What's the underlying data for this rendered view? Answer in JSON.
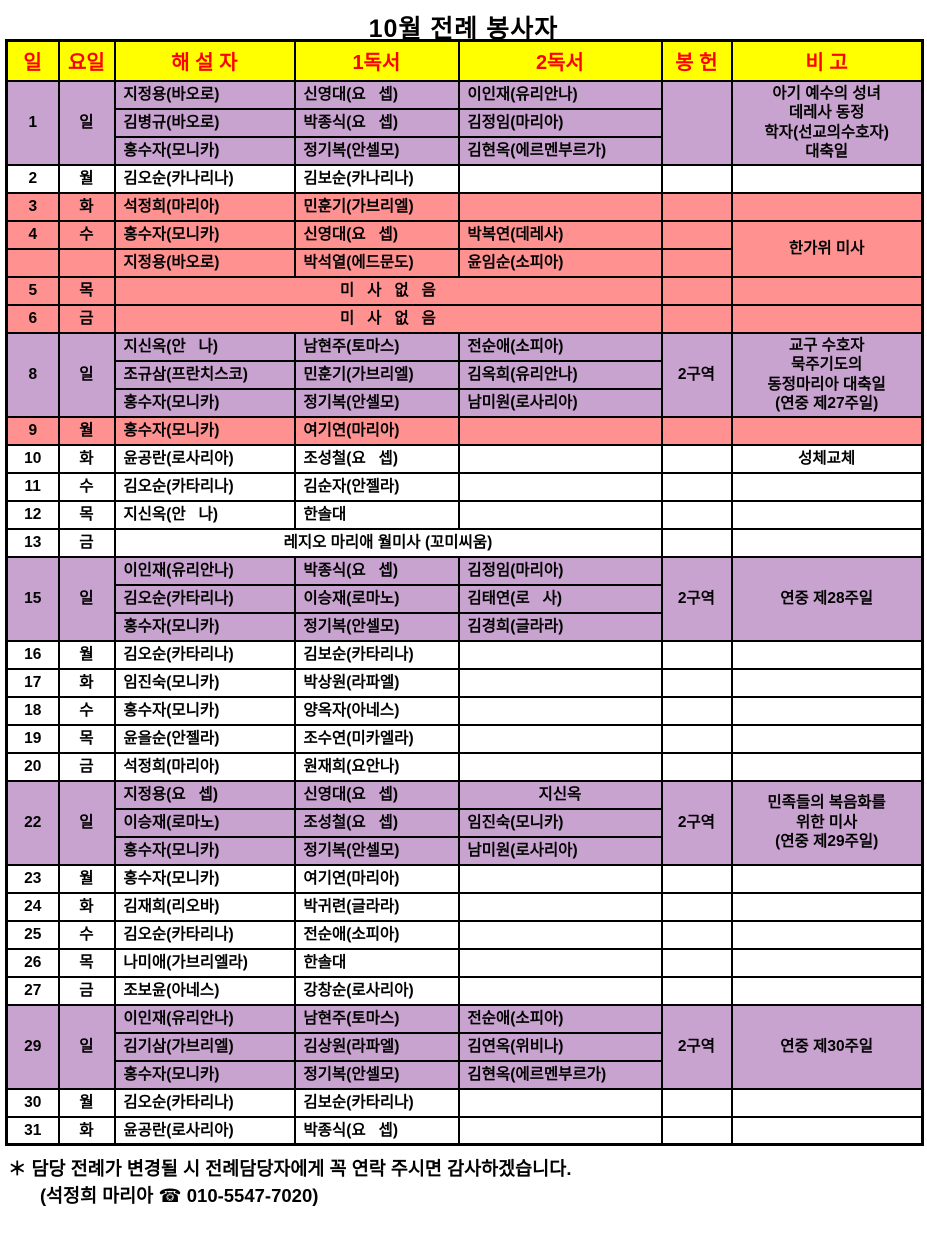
{
  "title": "10월 전례 봉사자",
  "columns": [
    "일",
    "요일",
    "해 설 자",
    "1독서",
    "2독서",
    "봉 헌",
    "비 고"
  ],
  "colors": {
    "header_bg": "#FFFF00",
    "header_text": "#FF0000",
    "sunday_row_bg": "#C9A3CF",
    "holiday_row_bg": "#FF9191",
    "plain_row_bg": "#FFFFFF",
    "grid_line": "#000000"
  },
  "rows": [
    {
      "bg": "purple",
      "cells": [
        {
          "t": "1",
          "rs": 3,
          "c": true
        },
        {
          "t": "일",
          "rs": 3,
          "c": true
        },
        {
          "t": "지정용(바오로)"
        },
        {
          "t": "신영대(요   셉)"
        },
        {
          "t": "이인재(유리안나)"
        },
        {
          "t": "",
          "rs": 3
        },
        {
          "t": "아기 예수의 성녀\n데레사 동정\n학자(선교의수호자)\n대축일",
          "rs": 3,
          "c": true
        }
      ]
    },
    {
      "bg": "purple",
      "cells": [
        {
          "t": "김병규(바오로)"
        },
        {
          "t": "박종식(요   셉)"
        },
        {
          "t": "김정임(마리아)"
        }
      ]
    },
    {
      "bg": "purple",
      "cells": [
        {
          "t": "홍수자(모니카)"
        },
        {
          "t": "정기복(안셀모)"
        },
        {
          "t": "김현옥(에르멘부르가)"
        }
      ]
    },
    {
      "bg": "white",
      "cells": [
        {
          "t": "2",
          "c": true
        },
        {
          "t": "월",
          "c": true
        },
        {
          "t": "김오순(카나리나)"
        },
        {
          "t": "김보순(카나리나)"
        },
        {
          "t": ""
        },
        {
          "t": ""
        },
        {
          "t": ""
        }
      ]
    },
    {
      "bg": "pink",
      "cells": [
        {
          "t": "3",
          "c": true
        },
        {
          "t": "화",
          "c": true
        },
        {
          "t": "석정희(마리아)"
        },
        {
          "t": "민훈기(가브리엘)"
        },
        {
          "t": ""
        },
        {
          "t": ""
        },
        {
          "t": ""
        }
      ]
    },
    {
      "bg": "pink",
      "cells": [
        {
          "t": "4",
          "c": true
        },
        {
          "t": "수",
          "c": true
        },
        {
          "t": "홍수자(모니카)"
        },
        {
          "t": "신영대(요   셉)"
        },
        {
          "t": "박복연(데레사)"
        },
        {
          "t": ""
        },
        {
          "t": "한가위 미사",
          "rs": 2,
          "c": true
        }
      ]
    },
    {
      "bg": "pink",
      "cells": [
        {
          "t": "",
          "c": true
        },
        {
          "t": "",
          "c": true
        },
        {
          "t": "지정용(바오로)"
        },
        {
          "t": "박석열(에드문도)"
        },
        {
          "t": "윤임순(소피아)"
        },
        {
          "t": ""
        }
      ]
    },
    {
      "bg": "pink",
      "cells": [
        {
          "t": "5",
          "c": true
        },
        {
          "t": "목",
          "c": true
        },
        {
          "t": "미   사   없   음",
          "cs": 3,
          "c": true
        },
        {
          "t": ""
        },
        {
          "t": ""
        }
      ]
    },
    {
      "bg": "pink",
      "cells": [
        {
          "t": "6",
          "c": true
        },
        {
          "t": "금",
          "c": true
        },
        {
          "t": "미   사   없   음",
          "cs": 3,
          "c": true
        },
        {
          "t": ""
        },
        {
          "t": ""
        }
      ]
    },
    {
      "bg": "purple",
      "cells": [
        {
          "t": "8",
          "rs": 3,
          "c": true
        },
        {
          "t": "일",
          "rs": 3,
          "c": true
        },
        {
          "t": "지신옥(안   나)"
        },
        {
          "t": "남현주(토마스)"
        },
        {
          "t": "전순애(소피아)"
        },
        {
          "t": "2구역",
          "rs": 3,
          "c": true
        },
        {
          "t": "교구 수호자\n묵주기도의\n동정마리아 대축일\n(연중 제27주일)",
          "rs": 3,
          "c": true
        }
      ]
    },
    {
      "bg": "purple",
      "cells": [
        {
          "t": "조규삼(프란치스코)"
        },
        {
          "t": "민훈기(가브리엘)"
        },
        {
          "t": "김옥희(유리안나)"
        }
      ]
    },
    {
      "bg": "purple",
      "cells": [
        {
          "t": "홍수자(모니카)"
        },
        {
          "t": "정기복(안셀모)"
        },
        {
          "t": "남미원(로사리아)"
        }
      ]
    },
    {
      "bg": "pink",
      "cells": [
        {
          "t": "9",
          "c": true
        },
        {
          "t": "월",
          "c": true
        },
        {
          "t": "홍수자(모니카)"
        },
        {
          "t": "여기연(마리아)"
        },
        {
          "t": ""
        },
        {
          "t": ""
        },
        {
          "t": ""
        }
      ]
    },
    {
      "bg": "white",
      "cells": [
        {
          "t": "10",
          "c": true
        },
        {
          "t": "화",
          "c": true
        },
        {
          "t": "윤공란(로사리아)"
        },
        {
          "t": "조성철(요   셉)"
        },
        {
          "t": ""
        },
        {
          "t": ""
        },
        {
          "t": "성체교체",
          "c": true
        }
      ]
    },
    {
      "bg": "white",
      "cells": [
        {
          "t": "11",
          "c": true
        },
        {
          "t": "수",
          "c": true
        },
        {
          "t": "김오순(카타리나)"
        },
        {
          "t": "김순자(안젤라)"
        },
        {
          "t": ""
        },
        {
          "t": ""
        },
        {
          "t": ""
        }
      ]
    },
    {
      "bg": "white",
      "cells": [
        {
          "t": "12",
          "c": true
        },
        {
          "t": "목",
          "c": true
        },
        {
          "t": "지신옥(안   나)"
        },
        {
          "t": "한솔대"
        },
        {
          "t": ""
        },
        {
          "t": ""
        },
        {
          "t": ""
        }
      ]
    },
    {
      "bg": "white",
      "cells": [
        {
          "t": "13",
          "c": true
        },
        {
          "t": "금",
          "c": true
        },
        {
          "t": "레지오 마리애 월미사 (꼬미씨움)",
          "cs": 3,
          "c": true
        },
        {
          "t": ""
        },
        {
          "t": ""
        }
      ]
    },
    {
      "bg": "purple",
      "cells": [
        {
          "t": "15",
          "rs": 3,
          "c": true
        },
        {
          "t": "일",
          "rs": 3,
          "c": true
        },
        {
          "t": "이인재(유리안나)"
        },
        {
          "t": "박종식(요   셉)"
        },
        {
          "t": "김정임(마리아)"
        },
        {
          "t": "2구역",
          "rs": 3,
          "c": true
        },
        {
          "t": "연중 제28주일",
          "rs": 3,
          "c": true
        }
      ]
    },
    {
      "bg": "purple",
      "cells": [
        {
          "t": "김오순(카타리나)"
        },
        {
          "t": "이승재(로마노)"
        },
        {
          "t": "김태연(로   사)"
        }
      ]
    },
    {
      "bg": "purple",
      "cells": [
        {
          "t": "홍수자(모니카)"
        },
        {
          "t": "정기복(안셀모)"
        },
        {
          "t": "김경희(글라라)"
        }
      ]
    },
    {
      "bg": "white",
      "cells": [
        {
          "t": "16",
          "c": true
        },
        {
          "t": "월",
          "c": true
        },
        {
          "t": "김오순(카타리나)"
        },
        {
          "t": "김보순(카타리나)"
        },
        {
          "t": ""
        },
        {
          "t": ""
        },
        {
          "t": ""
        }
      ]
    },
    {
      "bg": "white",
      "cells": [
        {
          "t": "17",
          "c": true
        },
        {
          "t": "화",
          "c": true
        },
        {
          "t": "임진숙(모니카)"
        },
        {
          "t": "박상원(라파엘)"
        },
        {
          "t": ""
        },
        {
          "t": ""
        },
        {
          "t": ""
        }
      ]
    },
    {
      "bg": "white",
      "cells": [
        {
          "t": "18",
          "c": true
        },
        {
          "t": "수",
          "c": true
        },
        {
          "t": "홍수자(모니카)"
        },
        {
          "t": "양옥자(아네스)"
        },
        {
          "t": ""
        },
        {
          "t": ""
        },
        {
          "t": ""
        }
      ]
    },
    {
      "bg": "white",
      "cells": [
        {
          "t": "19",
          "c": true
        },
        {
          "t": "목",
          "c": true
        },
        {
          "t": "윤을순(안젤라)"
        },
        {
          "t": "조수연(미카엘라)"
        },
        {
          "t": ""
        },
        {
          "t": ""
        },
        {
          "t": ""
        }
      ]
    },
    {
      "bg": "white",
      "cells": [
        {
          "t": "20",
          "c": true
        },
        {
          "t": "금",
          "c": true
        },
        {
          "t": "석정희(마리아)"
        },
        {
          "t": "원재희(요안나)"
        },
        {
          "t": ""
        },
        {
          "t": ""
        },
        {
          "t": ""
        }
      ]
    },
    {
      "bg": "purple",
      "cells": [
        {
          "t": "22",
          "rs": 3,
          "c": true
        },
        {
          "t": "일",
          "rs": 3,
          "c": true
        },
        {
          "t": "지정용(요   셉)"
        },
        {
          "t": "신영대(요   셉)"
        },
        {
          "t": "지신옥",
          "c": true
        },
        {
          "t": "2구역",
          "rs": 3,
          "c": true
        },
        {
          "t": "민족들의 복음화를\n위한 미사\n(연중 제29주일)",
          "rs": 3,
          "c": true
        }
      ]
    },
    {
      "bg": "purple",
      "cells": [
        {
          "t": "이승재(로마노)"
        },
        {
          "t": "조성철(요   셉)"
        },
        {
          "t": "임진숙(모니카)"
        }
      ]
    },
    {
      "bg": "purple",
      "cells": [
        {
          "t": "홍수자(모니카)"
        },
        {
          "t": "정기복(안셀모)"
        },
        {
          "t": "남미원(로사리아)"
        }
      ]
    },
    {
      "bg": "white",
      "cells": [
        {
          "t": "23",
          "c": true
        },
        {
          "t": "월",
          "c": true
        },
        {
          "t": "홍수자(모니카)"
        },
        {
          "t": "여기연(마리아)"
        },
        {
          "t": ""
        },
        {
          "t": ""
        },
        {
          "t": ""
        }
      ]
    },
    {
      "bg": "white",
      "cells": [
        {
          "t": "24",
          "c": true
        },
        {
          "t": "화",
          "c": true
        },
        {
          "t": "김재희(리오바)"
        },
        {
          "t": "박귀련(글라라)"
        },
        {
          "t": ""
        },
        {
          "t": ""
        },
        {
          "t": ""
        }
      ]
    },
    {
      "bg": "white",
      "cells": [
        {
          "t": "25",
          "c": true
        },
        {
          "t": "수",
          "c": true
        },
        {
          "t": "김오순(카타리나)"
        },
        {
          "t": "전순애(소피아)"
        },
        {
          "t": ""
        },
        {
          "t": ""
        },
        {
          "t": ""
        }
      ]
    },
    {
      "bg": "white",
      "cells": [
        {
          "t": "26",
          "c": true
        },
        {
          "t": "목",
          "c": true
        },
        {
          "t": "나미애(가브리엘라)"
        },
        {
          "t": "한솔대"
        },
        {
          "t": ""
        },
        {
          "t": ""
        },
        {
          "t": ""
        }
      ]
    },
    {
      "bg": "white",
      "cells": [
        {
          "t": "27",
          "c": true
        },
        {
          "t": "금",
          "c": true
        },
        {
          "t": "조보윤(아네스)"
        },
        {
          "t": "강창순(로사리아)"
        },
        {
          "t": ""
        },
        {
          "t": ""
        },
        {
          "t": ""
        }
      ]
    },
    {
      "bg": "purple",
      "cells": [
        {
          "t": "29",
          "rs": 3,
          "c": true
        },
        {
          "t": "일",
          "rs": 3,
          "c": true
        },
        {
          "t": "이인재(유리안나)"
        },
        {
          "t": "남현주(토마스)"
        },
        {
          "t": "전순애(소피아)"
        },
        {
          "t": "2구역",
          "rs": 3,
          "c": true
        },
        {
          "t": "연중 제30주일",
          "rs": 3,
          "c": true
        }
      ]
    },
    {
      "bg": "purple",
      "cells": [
        {
          "t": "김기삼(가브리엘)"
        },
        {
          "t": "김상원(라파엘)"
        },
        {
          "t": "김연옥(위비나)"
        }
      ]
    },
    {
      "bg": "purple",
      "cells": [
        {
          "t": "홍수자(모니카)"
        },
        {
          "t": "정기복(안셀모)"
        },
        {
          "t": "김현옥(에르멘부르가)"
        }
      ]
    },
    {
      "bg": "white",
      "cells": [
        {
          "t": "30",
          "c": true
        },
        {
          "t": "월",
          "c": true
        },
        {
          "t": "김오순(카타리나)"
        },
        {
          "t": "김보순(카타리나)"
        },
        {
          "t": ""
        },
        {
          "t": ""
        },
        {
          "t": ""
        }
      ]
    },
    {
      "bg": "white",
      "cells": [
        {
          "t": "31",
          "c": true
        },
        {
          "t": "화",
          "c": true
        },
        {
          "t": "윤공란(로사리아)"
        },
        {
          "t": "박종식(요   셉)"
        },
        {
          "t": ""
        },
        {
          "t": ""
        },
        {
          "t": ""
        }
      ]
    }
  ],
  "footer": {
    "line1": "＊ 담당 전례가 변경될 시 전례담당자에게 꼭 연락 주시면 감사하겠습니다.",
    "line2": "(석정희 마리아 ☎ 010-5547-7020)"
  }
}
